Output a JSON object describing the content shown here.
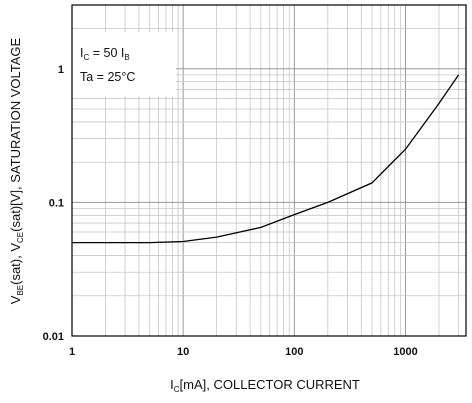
{
  "chart_data": {
    "type": "line",
    "x_scale": "log",
    "y_scale": "log",
    "xlim": [
      1,
      3500
    ],
    "ylim": [
      0.01,
      3
    ],
    "x_ticks": [
      1,
      10,
      100,
      1000
    ],
    "x_tick_labels": [
      "1",
      "10",
      "100",
      "1000"
    ],
    "y_ticks": [
      0.01,
      0.1,
      1
    ],
    "y_tick_labels": [
      "0.01",
      "0.1",
      "1"
    ],
    "grid": true,
    "xlabel": {
      "pre": "I",
      "sub": "C",
      "post": "[mA], COLLECTOR CURRENT"
    },
    "ylabel": {
      "parts": [
        {
          "t": "V",
          "s": false
        },
        {
          "t": "BE",
          "s": true
        },
        {
          "t": "(sat), V",
          "s": false
        },
        {
          "t": "CE",
          "s": true
        },
        {
          "t": "(sat)[V], SATURATION VOLTAGE",
          "s": false
        }
      ]
    },
    "annotation": {
      "line1": [
        {
          "t": "I",
          "s": false
        },
        {
          "t": "C",
          "s": true
        },
        {
          "t": " = 50 I",
          "s": false
        },
        {
          "t": "B",
          "s": true
        }
      ],
      "line2": "Ta = 25°C"
    },
    "series": [
      {
        "x": [
          1,
          3,
          5,
          10,
          20,
          50,
          100,
          200,
          500,
          1000,
          2000,
          3000
        ],
        "y": [
          0.05,
          0.05,
          0.05,
          0.051,
          0.055,
          0.065,
          0.081,
          0.1,
          0.14,
          0.25,
          0.55,
          0.9
        ]
      }
    ]
  }
}
